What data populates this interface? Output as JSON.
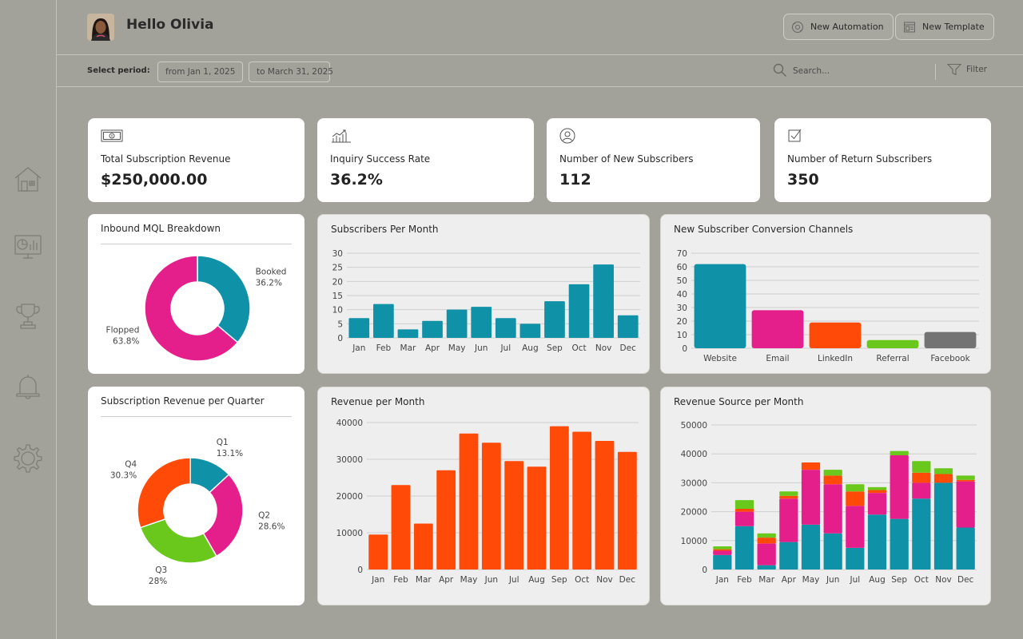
{
  "header": {
    "greeting": "Hello Olivia",
    "buttons": [
      {
        "label": "New Automation",
        "icon": "automation-icon"
      },
      {
        "label": "New Template",
        "icon": "template-icon"
      }
    ]
  },
  "filters": {
    "period_label": "Select period:",
    "from": "from Jan 1, 2025",
    "to": "to March 31, 2025",
    "search_placeholder": "Search...",
    "filter_label": "Filter"
  },
  "sidebar": {
    "items": [
      {
        "icon": "home-icon"
      },
      {
        "icon": "analytics-icon"
      },
      {
        "icon": "trophy-icon"
      },
      {
        "icon": "bell-icon"
      },
      {
        "icon": "gear-icon"
      }
    ]
  },
  "kpis": [
    {
      "label": "Total Subscription Revenue",
      "value": "$250,000.00",
      "icon": "money-icon"
    },
    {
      "label": "Inquiry Success Rate",
      "value": "36.2%",
      "icon": "growth-chart-icon"
    },
    {
      "label": "Number of New Subscribers",
      "value": "112",
      "icon": "user-icon"
    },
    {
      "label": "Number of Return Subscribers",
      "value": "350",
      "icon": "checkbox-icon"
    }
  ],
  "colors": {
    "teal": "#0f91a8",
    "pink": "#e41f8c",
    "orange": "#ff4a08",
    "green": "#6ac71b",
    "grey": "#737373"
  },
  "chart_data": [
    {
      "type": "pie",
      "title": "Inbound MQL Breakdown",
      "slices": [
        {
          "label": "Booked",
          "value": 36.2,
          "display": "36.2%",
          "color": "#0f91a8"
        },
        {
          "label": "Flopped",
          "value": 63.8,
          "display": "63.8%",
          "color": "#e41f8c"
        }
      ]
    },
    {
      "type": "bar",
      "title": "Subscribers Per Month",
      "categories": [
        "Jan",
        "Feb",
        "Mar",
        "Apr",
        "May",
        "Jun",
        "Jul",
        "Aug",
        "Sep",
        "Oct",
        "Nov",
        "Dec"
      ],
      "values": [
        7,
        12,
        3,
        6,
        10,
        11,
        7,
        5,
        13,
        19,
        26,
        8
      ],
      "ylim": [
        0,
        30
      ],
      "yticks": [
        0,
        5,
        10,
        15,
        20,
        25,
        30
      ],
      "color": "#0f91a8",
      "grid": true
    },
    {
      "type": "bar",
      "title": "New Subscriber Conversion Channels",
      "categories": [
        "Website",
        "Email",
        "LinkedIn",
        "Referral",
        "Facebook"
      ],
      "values": [
        62,
        28,
        19,
        6,
        12
      ],
      "colors": [
        "#0f91a8",
        "#e41f8c",
        "#ff4a08",
        "#6ac71b",
        "#737373"
      ],
      "ylim": [
        0,
        70
      ],
      "yticks": [
        0,
        10,
        20,
        30,
        40,
        50,
        60,
        70
      ],
      "grid": true
    },
    {
      "type": "pie",
      "title": "Subscription Revenue per Quarter",
      "slices": [
        {
          "label": "Q1",
          "value": 13.1,
          "display": "13.1%",
          "color": "#0f91a8"
        },
        {
          "label": "Q2",
          "value": 28.6,
          "display": "28.6%",
          "color": "#e41f8c"
        },
        {
          "label": "Q3",
          "value": 28,
          "display": "28%",
          "color": "#6ac71b"
        },
        {
          "label": "Q4",
          "value": 30.3,
          "display": "30.3%",
          "color": "#ff4a08"
        }
      ]
    },
    {
      "type": "bar",
      "title": "Revenue per Month",
      "categories": [
        "Jan",
        "Feb",
        "Mar",
        "Apr",
        "May",
        "Jun",
        "Jul",
        "Aug",
        "Sep",
        "Oct",
        "Nov",
        "Dec"
      ],
      "values": [
        9500,
        23000,
        12500,
        27000,
        37000,
        34500,
        29500,
        28000,
        39000,
        37500,
        35000,
        32000
      ],
      "ylim": [
        0,
        40000
      ],
      "yticks": [
        0,
        10000,
        20000,
        30000,
        40000
      ],
      "color": "#ff4a08",
      "grid": true
    },
    {
      "type": "bar",
      "title": "Revenue Source per Month",
      "stacked": true,
      "categories": [
        "Jan",
        "Feb",
        "Mar",
        "Apr",
        "May",
        "Jun",
        "Jul",
        "Aug",
        "Sep",
        "Oct",
        "Nov",
        "Dec"
      ],
      "series": [
        {
          "color": "#0f91a8",
          "values": [
            5000,
            15000,
            1500,
            9500,
            15500,
            12500,
            7500,
            19000,
            17500,
            24500,
            30000,
            14500
          ]
        },
        {
          "color": "#e41f8c",
          "values": [
            1500,
            5000,
            7500,
            15000,
            19000,
            17000,
            14500,
            7500,
            22000,
            5500,
            0,
            16000
          ]
        },
        {
          "color": "#ff4a08",
          "values": [
            500,
            1000,
            2000,
            1000,
            2500,
            3000,
            5000,
            1000,
            0,
            3500,
            3000,
            500
          ]
        },
        {
          "color": "#6ac71b",
          "values": [
            1000,
            3000,
            1500,
            1500,
            0,
            2000,
            2500,
            1000,
            1500,
            4000,
            2000,
            1500
          ]
        }
      ],
      "ylim": [
        0,
        50000
      ],
      "yticks": [
        0,
        10000,
        20000,
        30000,
        40000,
        50000
      ],
      "grid": true
    }
  ]
}
